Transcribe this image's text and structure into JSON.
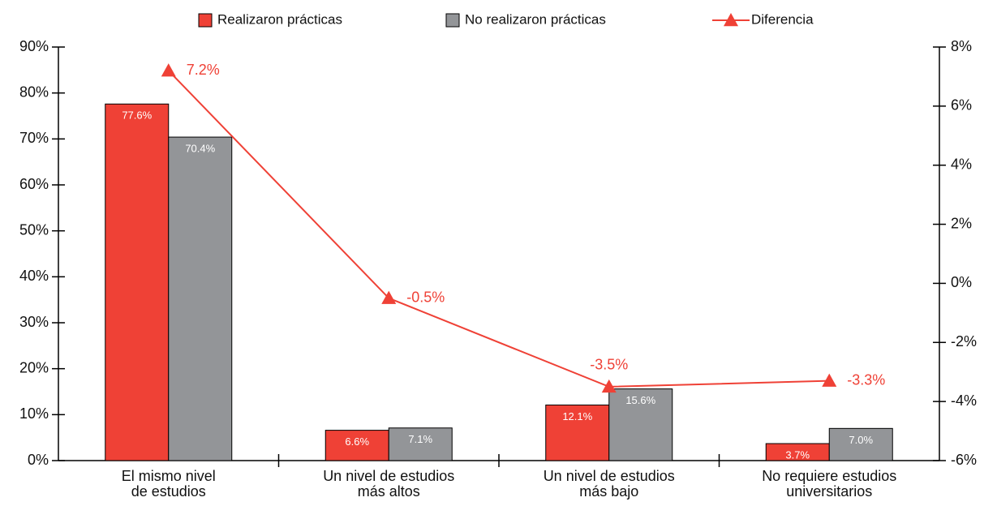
{
  "chart_data": {
    "type": "bar_line",
    "categories": [
      [
        "El mismo nivel",
        "de estudios"
      ],
      [
        "Un nivel de estudios",
        "más altos"
      ],
      [
        "Un nivel de estudios",
        "más bajo"
      ],
      [
        "No requiere estudios",
        "universitarios"
      ]
    ],
    "series": [
      {
        "name": "Realizaron prácticas",
        "color": "#ef4136",
        "type": "bar",
        "values": [
          77.6,
          6.6,
          12.1,
          3.7
        ],
        "value_labels": [
          "77.6%",
          "6.6%",
          "12.1%",
          "3.7%"
        ]
      },
      {
        "name": "No realizaron prácticas",
        "color": "#939598",
        "type": "bar",
        "values": [
          70.4,
          7.1,
          15.6,
          7.0
        ],
        "value_labels": [
          "70.4%",
          "7.1%",
          "15.6%",
          "7.0%"
        ]
      },
      {
        "name": "Diferencia",
        "color": "#ef4136",
        "type": "line",
        "axis": "y2",
        "values": [
          7.2,
          -0.5,
          -3.5,
          -3.3
        ],
        "value_labels": [
          "7.2%",
          "-0.5%",
          "-3.5%",
          "-3.3%"
        ]
      }
    ],
    "ylim": [
      0,
      90
    ],
    "yticks": [
      {
        "value": 0,
        "label": "0%"
      },
      {
        "value": 10,
        "label": "10%"
      },
      {
        "value": 20,
        "label": "20%"
      },
      {
        "value": 30,
        "label": "30%"
      },
      {
        "value": 40,
        "label": "40%"
      },
      {
        "value": 50,
        "label": "50%"
      },
      {
        "value": 60,
        "label": "60%"
      },
      {
        "value": 70,
        "label": "70%"
      },
      {
        "value": 80,
        "label": "80%"
      },
      {
        "value": 90,
        "label": "90%"
      }
    ],
    "y2lim": [
      -6,
      8
    ],
    "y2ticks": [
      {
        "value": -6,
        "label": "-6%"
      },
      {
        "value": -4,
        "label": "-4%"
      },
      {
        "value": -2,
        "label": "-2%"
      },
      {
        "value": 0,
        "label": "0%"
      },
      {
        "value": 2,
        "label": "2%"
      },
      {
        "value": 4,
        "label": "4%"
      },
      {
        "value": 6,
        "label": "6%"
      },
      {
        "value": 8,
        "label": "8%"
      }
    ],
    "legend": "top"
  }
}
